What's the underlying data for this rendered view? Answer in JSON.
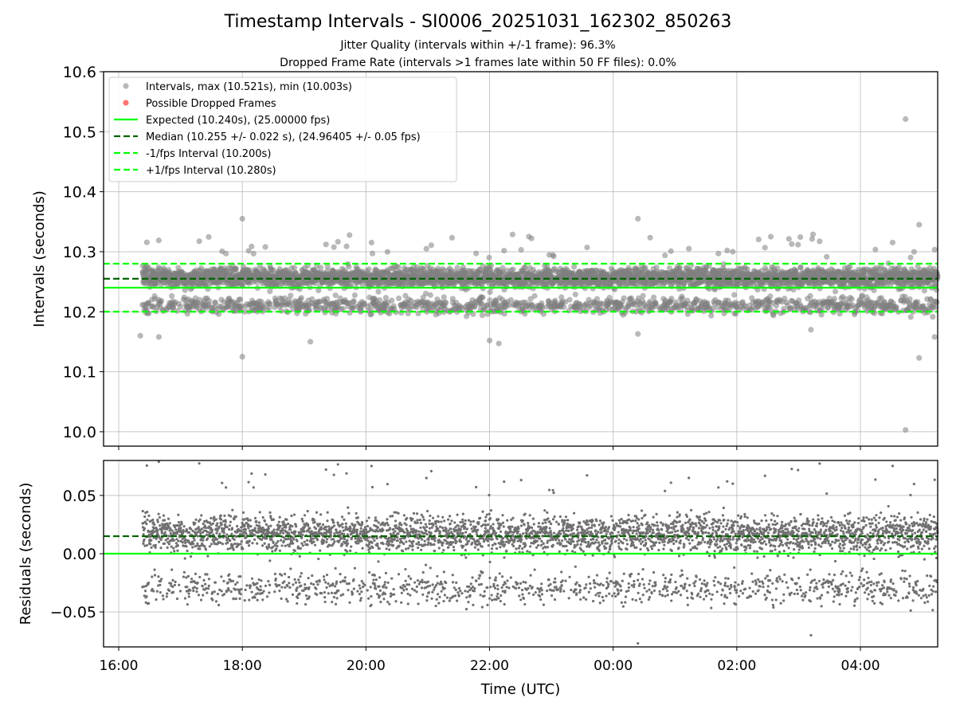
{
  "chart_data": [
    {
      "type": "scatter",
      "title": "Timestamp Intervals - SI0006_20251031_162302_850263",
      "subtitles": [
        "Jitter Quality (intervals within +/-1 frame): 96.3%",
        "Dropped Frame Rate (intervals >1 frames late within 50 FF files): 0.0%"
      ],
      "ylabel": "Intervals (seconds)",
      "ylim": [
        9.976,
        10.6
      ],
      "yticks": [
        "10.0",
        "10.1",
        "10.2",
        "10.3",
        "10.4",
        "10.5",
        "10.6"
      ],
      "ytick_values": [
        10.0,
        10.1,
        10.2,
        10.3,
        10.4,
        10.5,
        10.6
      ],
      "grid": true,
      "legend_position": "top-left",
      "legend": [
        "Intervals, max (10.521s), min (10.003s)",
        "Possible Dropped Frames",
        "Expected (10.240s), (25.00000 fps)",
        "Median (10.255 +/- 0.022 s), (24.96405 +/- 0.05 fps)",
        "-1/fps Interval (10.200s)",
        "+1/fps Interval (10.280s)"
      ],
      "lines": {
        "expected": 10.24,
        "median": 10.255,
        "minus_1fps": 10.2,
        "plus_1fps": 10.28
      },
      "series_model": {
        "start_hours_after_16": 0.384,
        "end_hours_after_16": 13.3,
        "interval_s": 10.24,
        "main_band_center": 10.257,
        "main_band_spread": 0.008,
        "main_fraction": 0.74,
        "low_band_center": 10.21,
        "low_band_spread": 0.007
      },
      "notable_points": [
        {
          "t": 12.73,
          "y": 10.521
        },
        {
          "t": 12.73,
          "y": 10.003
        },
        {
          "t": 2.0,
          "y": 10.355
        },
        {
          "t": 2.0,
          "y": 10.125
        },
        {
          "t": 8.4,
          "y": 10.355
        },
        {
          "t": 3.1,
          "y": 10.15
        },
        {
          "t": 6.0,
          "y": 10.152
        },
        {
          "t": 6.15,
          "y": 10.147
        },
        {
          "t": 0.35,
          "y": 10.16
        },
        {
          "t": 0.65,
          "y": 10.158
        },
        {
          "t": 8.4,
          "y": 10.163
        },
        {
          "t": 11.2,
          "y": 10.17
        },
        {
          "t": 12.95,
          "y": 10.345
        },
        {
          "t": 12.95,
          "y": 10.123
        },
        {
          "t": 13.2,
          "y": 10.158
        }
      ],
      "colors": {
        "points": "#808080",
        "dropped": "#ff0000",
        "expected": "#00ff00",
        "median": "#006400",
        "fps": "#00ff00"
      }
    },
    {
      "type": "scatter",
      "xlabel": "Time (UTC)",
      "ylabel": "Residuals (seconds)",
      "ylim": [
        -0.08,
        0.08
      ],
      "yticks": [
        "−0.05",
        "0.00",
        "0.05"
      ],
      "ytick_values": [
        -0.05,
        0.0,
        0.05
      ],
      "xlim_hours_after_16": [
        -0.245,
        13.25
      ],
      "xticks": [
        "16:00",
        "18:00",
        "20:00",
        "22:00",
        "00:00",
        "02:00",
        "04:00"
      ],
      "xtick_values": [
        0,
        2,
        4,
        6,
        8,
        10,
        12
      ],
      "lines": {
        "zero": 0.0,
        "median_residual": 0.015
      },
      "colors": {
        "points": "#707070",
        "zero": "#00ff00",
        "median": "#006400"
      }
    }
  ]
}
